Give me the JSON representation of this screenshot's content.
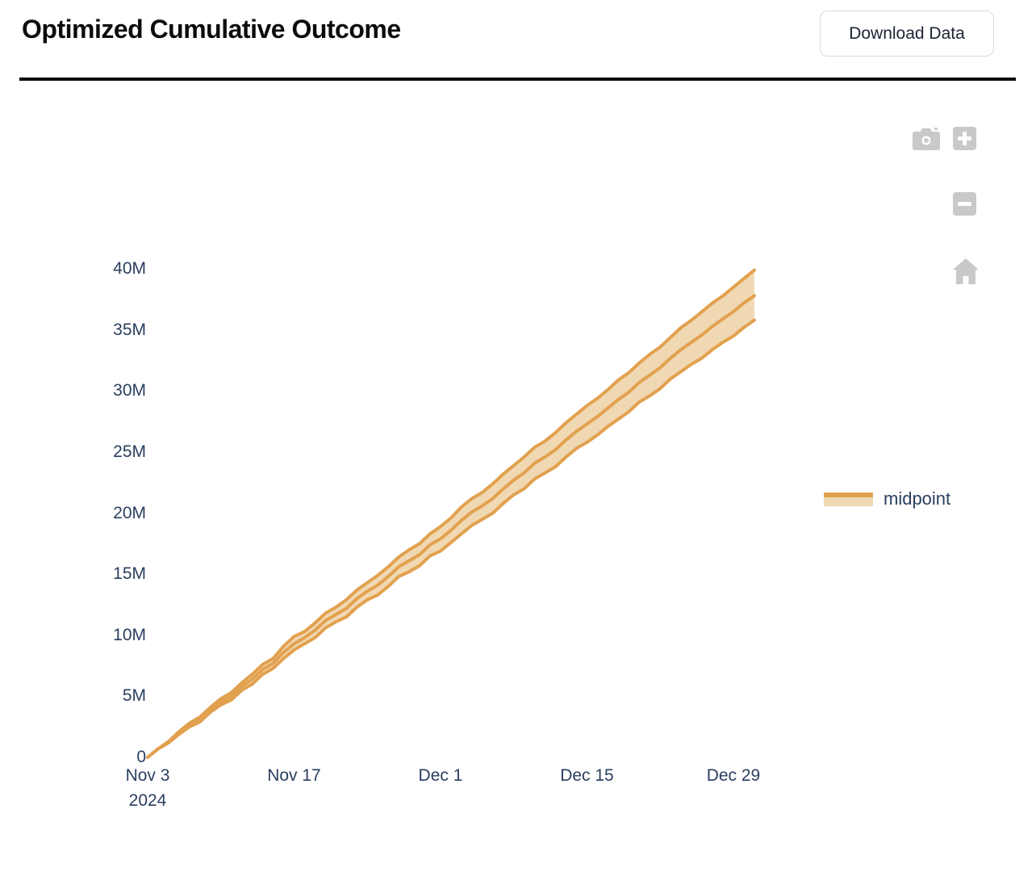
{
  "header": {
    "title": "Optimized Cumulative Outcome",
    "download_button_label": "Download Data"
  },
  "modebar": {
    "icons": [
      "camera-icon",
      "zoom-in-icon",
      "zoom-out-icon",
      "home-icon"
    ]
  },
  "legend": {
    "label": "midpoint",
    "line_color": "#e2a14f",
    "fill_color": "#f0d8b2"
  },
  "colors": {
    "line": "#e2a14f",
    "band_fill": "#f0d8b2",
    "axis_text": "#2a3f5f",
    "icon_gray": "#c9c9c9",
    "divider": "#0b0b0b"
  },
  "chart_data": {
    "type": "area",
    "title": "",
    "xlabel": "",
    "ylabel": "",
    "unit": "millions",
    "grid": false,
    "legend_position": "right",
    "x_range_dates": [
      "2024-11-03",
      "2024-12-31"
    ],
    "x_tick_days": [
      0,
      14,
      28,
      42,
      56
    ],
    "x_tick_labels": [
      "Nov 3",
      "Nov 17",
      "Dec 1",
      "Dec 15",
      "Dec 29"
    ],
    "x_tick_sublabels": [
      "2024",
      "",
      "",
      "",
      ""
    ],
    "ylim_m": [
      0,
      40
    ],
    "y_tick_values_m": [
      0,
      5,
      10,
      15,
      20,
      25,
      30,
      35,
      40
    ],
    "y_tick_labels": [
      "0",
      "5M",
      "10M",
      "15M",
      "20M",
      "25M",
      "30M",
      "35M",
      "40M"
    ],
    "days": [
      0,
      1,
      2,
      3,
      4,
      5,
      6,
      7,
      8,
      9,
      10,
      11,
      12,
      13,
      14,
      15,
      16,
      17,
      18,
      19,
      20,
      21,
      22,
      23,
      24,
      25,
      26,
      27,
      28,
      29,
      30,
      31,
      32,
      33,
      34,
      35,
      36,
      37,
      38,
      39,
      40,
      41,
      42,
      43,
      44,
      45,
      46,
      47,
      48,
      49,
      50,
      51,
      52,
      53,
      54,
      55,
      56,
      57,
      58
    ],
    "series": [
      {
        "name": "midpoint",
        "values_m": [
          0.0,
          0.7,
          1.2,
          2.0,
          2.6,
          3.1,
          3.9,
          4.5,
          5.0,
          5.8,
          6.4,
          7.2,
          7.7,
          8.6,
          9.3,
          9.8,
          10.4,
          11.2,
          11.7,
          12.2,
          13.0,
          13.6,
          14.1,
          14.8,
          15.6,
          16.1,
          16.6,
          17.4,
          17.9,
          18.6,
          19.4,
          20.1,
          20.6,
          21.2,
          22.0,
          22.7,
          23.3,
          24.1,
          24.6,
          25.2,
          26.0,
          26.7,
          27.3,
          27.9,
          28.6,
          29.3,
          29.9,
          30.7,
          31.3,
          31.9,
          32.7,
          33.4,
          34.0,
          34.6,
          35.3,
          35.9,
          36.5,
          37.2,
          37.8
        ]
      },
      {
        "name": "upper",
        "values_m": [
          0.0,
          0.7,
          1.3,
          2.1,
          2.8,
          3.3,
          4.1,
          4.8,
          5.3,
          6.1,
          6.8,
          7.6,
          8.1,
          9.1,
          9.9,
          10.3,
          11.0,
          11.8,
          12.3,
          12.9,
          13.7,
          14.3,
          14.9,
          15.6,
          16.4,
          17.0,
          17.5,
          18.3,
          18.9,
          19.6,
          20.5,
          21.2,
          21.7,
          22.4,
          23.2,
          23.9,
          24.6,
          25.4,
          25.9,
          26.6,
          27.4,
          28.1,
          28.8,
          29.4,
          30.1,
          30.9,
          31.5,
          32.3,
          33.0,
          33.6,
          34.4,
          35.2,
          35.8,
          36.5,
          37.2,
          37.8,
          38.5,
          39.2,
          39.9
        ]
      },
      {
        "name": "lower",
        "values_m": [
          0.0,
          0.7,
          1.2,
          1.9,
          2.5,
          2.9,
          3.7,
          4.3,
          4.7,
          5.5,
          6.0,
          6.8,
          7.3,
          8.1,
          8.8,
          9.3,
          9.8,
          10.6,
          11.1,
          11.5,
          12.3,
          12.9,
          13.3,
          14.0,
          14.8,
          15.2,
          15.7,
          16.5,
          16.9,
          17.6,
          18.3,
          19.0,
          19.5,
          20.0,
          20.8,
          21.5,
          22.0,
          22.8,
          23.3,
          23.8,
          24.6,
          25.3,
          25.8,
          26.4,
          27.1,
          27.7,
          28.3,
          29.1,
          29.6,
          30.2,
          31.0,
          31.6,
          32.2,
          32.7,
          33.4,
          34.0,
          34.5,
          35.2,
          35.8
        ]
      }
    ]
  }
}
